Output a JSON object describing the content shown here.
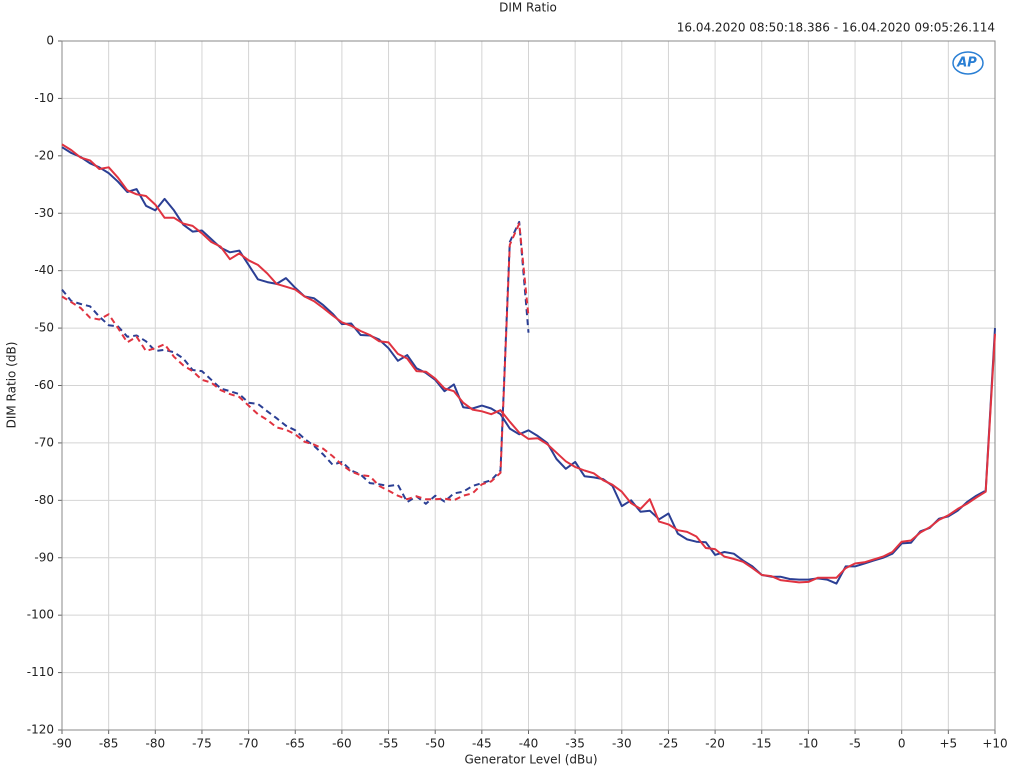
{
  "chart_data": {
    "type": "line",
    "title": "DIM Ratio",
    "subtitle": "16.04.2020 08:50:18.386 - 16.04.2020 09:05:26.114",
    "logo": "AP",
    "xlabel": "Generator Level (dBu)",
    "ylabel": "DIM Ratio (dB)",
    "xlim": [
      -90,
      10
    ],
    "ylim": [
      -120,
      0
    ],
    "xticks": [
      -90,
      -85,
      -80,
      -75,
      -70,
      -65,
      -60,
      -55,
      -50,
      -45,
      -40,
      -35,
      -30,
      -25,
      -20,
      -15,
      -10,
      -5,
      0,
      {
        "value": 5,
        "label": "+5"
      },
      {
        "value": 10,
        "label": "+10"
      }
    ],
    "yticks": [
      0,
      -10,
      -20,
      -30,
      -40,
      -50,
      -60,
      -70,
      -80,
      -90,
      -100,
      -110,
      -120
    ],
    "grid": true,
    "x": [
      -90,
      -89,
      -88,
      -87,
      -86,
      -85,
      -84,
      -83,
      -82,
      -81,
      -80,
      -79,
      -78,
      -77,
      -76,
      -75,
      -74,
      -73,
      -72,
      -71,
      -70,
      -69,
      -68,
      -67,
      -66,
      -65,
      -64,
      -63,
      -62,
      -61,
      -60,
      -59,
      -58,
      -57,
      -56,
      -55,
      -54,
      -53,
      -52,
      -51,
      -50,
      -49,
      -48,
      -47,
      -46,
      -45,
      -44,
      -43,
      -42,
      -41,
      -40,
      -39,
      -38,
      -37,
      -36,
      -35,
      -34,
      -33,
      -32,
      -31,
      -30,
      -29,
      -28,
      -27,
      -26,
      -25,
      -24,
      -23,
      -22,
      -21,
      -20,
      -19,
      -18,
      -17,
      -16,
      -15,
      -14,
      -13,
      -12,
      -11,
      -10,
      -9,
      -8,
      -7,
      -6,
      -5,
      -4,
      -3,
      -2,
      -1,
      0,
      1,
      2,
      3,
      4,
      5,
      6,
      7,
      8,
      9,
      10
    ],
    "series": [
      {
        "color": "#2b3f94",
        "dashed": false,
        "values": [
          -18.5,
          -19.5,
          -20.2,
          -21.3,
          -22,
          -23,
          -24.5,
          -26.3,
          -25.8,
          -28.7,
          -29.5,
          -27.5,
          -29.5,
          -32,
          -33.2,
          -33,
          -34.5,
          -36,
          -36.8,
          -36.5,
          -39,
          -41.5,
          -42,
          -42.3,
          -41.3,
          -43,
          -44.5,
          -44.8,
          -46,
          -47.5,
          -49.3,
          -49.2,
          -51.2,
          -51.3,
          -52,
          -53.5,
          -55.7,
          -54.7,
          -57,
          -57.8,
          -59,
          -61,
          -59.8,
          -63.8,
          -64,
          -63.5,
          -64,
          -65,
          -67.5,
          -68.5,
          -67.8,
          -68.8,
          -70,
          -72.8,
          -74.5,
          -73.3,
          -75.8,
          -76,
          -76.3,
          -77.5,
          -81,
          -80,
          -82,
          -81.8,
          -83.3,
          -82.3,
          -85.8,
          -86.8,
          -87.2,
          -87.3,
          -89.5,
          -89,
          -89.3,
          -90.5,
          -91.5,
          -93,
          -93.3,
          -93.3,
          -93.7,
          -93.8,
          -93.8,
          -93.6,
          -93.8,
          -94.5,
          -91.5,
          -91.5,
          -91,
          -90.5,
          -90,
          -89.3,
          -87.5,
          -87.4,
          -85.4,
          -84.8,
          -83.2,
          -82.8,
          -81.8,
          -80.3,
          -79.2,
          -78.3,
          -50
        ]
      },
      {
        "color": "#e03340",
        "dashed": false,
        "values": [
          -18,
          -19,
          -20.3,
          -20.8,
          -22.3,
          -22,
          -23.8,
          -26,
          -26.7,
          -27,
          -28.5,
          -30.8,
          -30.8,
          -31.8,
          -32.2,
          -33.5,
          -35,
          -35.8,
          -38,
          -37,
          -38.2,
          -39,
          -40.5,
          -42.3,
          -42.8,
          -43.3,
          -44.5,
          -45.3,
          -46.5,
          -47.8,
          -49,
          -49.6,
          -50.5,
          -51.2,
          -52.3,
          -52.5,
          -54.5,
          -55.3,
          -57.5,
          -57.6,
          -58.8,
          -60.5,
          -61,
          -63,
          -64.2,
          -64.5,
          -65,
          -64.3,
          -66.3,
          -68.2,
          -69.3,
          -69.2,
          -70.2,
          -71.7,
          -73.2,
          -74.2,
          -74.8,
          -75.3,
          -76.5,
          -77.3,
          -78.5,
          -80.5,
          -81.5,
          -79.8,
          -83.7,
          -84.2,
          -85.2,
          -85.5,
          -86.3,
          -88.3,
          -88.5,
          -89.8,
          -90.2,
          -90.7,
          -91.8,
          -93,
          -93.2,
          -93.9,
          -94.1,
          -94.3,
          -94.2,
          -93.5,
          -93.5,
          -93.5,
          -91.8,
          -91,
          -90.8,
          -90.3,
          -89.8,
          -89,
          -87.2,
          -87,
          -85.6,
          -84.7,
          -83.4,
          -82.6,
          -81.5,
          -80.6,
          -79.5,
          -78.5,
          -51
        ]
      },
      {
        "color": "#2b3f94",
        "dashed": true,
        "values": [
          -43.3,
          -45.3,
          -45.8,
          -46.2,
          -48,
          -49.5,
          -49.7,
          -51.5,
          -51.3,
          -52.3,
          -54,
          -53.8,
          -54.2,
          -55.3,
          -57.3,
          -57.5,
          -59,
          -60.5,
          -61,
          -61.5,
          -63,
          -63.2,
          -64.5,
          -65.7,
          -67,
          -67.8,
          -69.3,
          -70.5,
          -72,
          -73.8,
          -73.3,
          -74.8,
          -75.5,
          -77,
          -77.2,
          -77.5,
          -77.3,
          -80.3,
          -79.3,
          -80.6,
          -79.2,
          -80.2,
          -78.8,
          -78.5,
          -77.5,
          -77,
          -76.5,
          -74.8,
          -35,
          -31.5,
          -50.8,
          null,
          null,
          null,
          null,
          null,
          null,
          null,
          null,
          null,
          null,
          null,
          null,
          null,
          null,
          null,
          null,
          null,
          null,
          null,
          null,
          null,
          null,
          null,
          null,
          null,
          null,
          null,
          null,
          null,
          null,
          null,
          null,
          null,
          null,
          null,
          null,
          null,
          null,
          null,
          null,
          null,
          null,
          null,
          null,
          null,
          null,
          null,
          null,
          null,
          null
        ]
      },
      {
        "color": "#e03340",
        "dashed": true,
        "values": [
          -44.5,
          -45.5,
          -46.5,
          -48.2,
          -48.5,
          -47.6,
          -50,
          -52.5,
          -51.5,
          -54,
          -53.5,
          -52.8,
          -55,
          -56.5,
          -57.5,
          -59,
          -59.5,
          -60.8,
          -61.5,
          -62,
          -63.5,
          -65,
          -66,
          -67.3,
          -67.7,
          -68.5,
          -69.8,
          -70.3,
          -71,
          -72.3,
          -73.8,
          -75,
          -75.6,
          -75.8,
          -77.5,
          -78.3,
          -79.2,
          -79.8,
          -79.3,
          -79.8,
          -79.8,
          -79.7,
          -80,
          -79.2,
          -78.8,
          -77.2,
          -76.7,
          -75.2,
          -35.5,
          -31.8,
          -48,
          null,
          null,
          null,
          null,
          null,
          null,
          null,
          null,
          null,
          null,
          null,
          null,
          null,
          null,
          null,
          null,
          null,
          null,
          null,
          null,
          null,
          null,
          null,
          null,
          null,
          null,
          null,
          null,
          null,
          null,
          null,
          null,
          null,
          null,
          null,
          null,
          null,
          null,
          null,
          null,
          null,
          null,
          null,
          null,
          null,
          null,
          null,
          null,
          null,
          null
        ]
      }
    ]
  }
}
